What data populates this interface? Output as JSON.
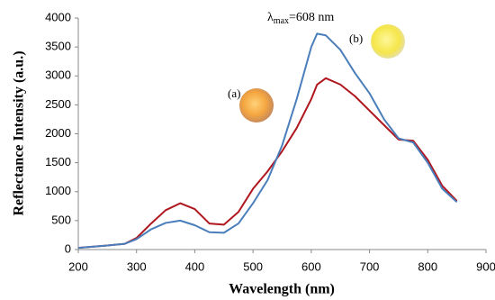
{
  "chart_data": {
    "type": "line",
    "x_label": "Wavelength (nm)",
    "y_label": "Reflectance Intensity (a.u.)",
    "x": [
      200,
      250,
      280,
      300,
      325,
      350,
      375,
      400,
      425,
      450,
      475,
      500,
      525,
      550,
      575,
      600,
      610,
      625,
      650,
      675,
      700,
      725,
      750,
      775,
      800,
      825,
      850
    ],
    "series": [
      {
        "name": "(a)",
        "color": "#b0161e",
        "values": [
          30,
          70,
          100,
          200,
          450,
          680,
          800,
          700,
          450,
          430,
          650,
          1050,
          1350,
          1700,
          2100,
          2600,
          2850,
          2960,
          2850,
          2650,
          2400,
          2150,
          1900,
          1880,
          1550,
          1100,
          840
        ]
      },
      {
        "name": "(b)",
        "color": "#4a7ebb",
        "values": [
          30,
          70,
          100,
          180,
          350,
          460,
          500,
          420,
          300,
          290,
          450,
          800,
          1200,
          1800,
          2600,
          3500,
          3730,
          3700,
          3450,
          3050,
          2700,
          2250,
          1920,
          1850,
          1500,
          1050,
          820
        ]
      }
    ],
    "xlim": [
      200,
      900
    ],
    "xticks": [
      200,
      300,
      400,
      500,
      600,
      700,
      800,
      900
    ],
    "ylim": [
      0,
      4000
    ],
    "yticks": [
      0,
      500,
      1000,
      1500,
      2000,
      2500,
      3000,
      3500,
      4000
    ],
    "grid": false,
    "annotation": {
      "symbol": "λ",
      "subscript": "max",
      "text": "=608 nm"
    }
  }
}
